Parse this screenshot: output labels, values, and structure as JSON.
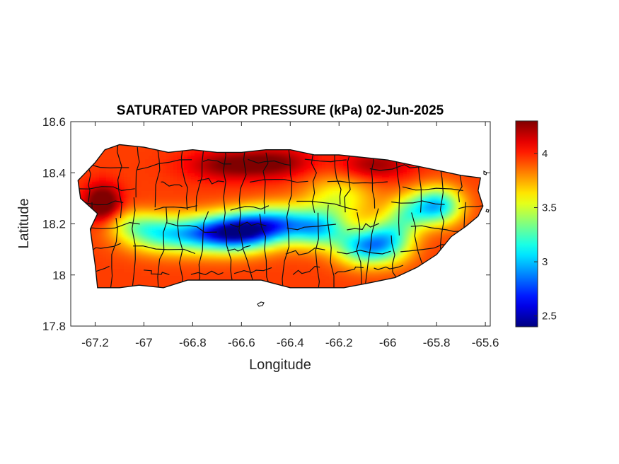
{
  "chart_data": {
    "type": "heatmap",
    "title": "SATURATED VAPOR PRESSURE (kPa) 02-Jun-2025",
    "xlabel": "Longitude",
    "ylabel": "Latitude",
    "xlim": [
      -67.3,
      -65.58
    ],
    "ylim": [
      17.8,
      18.6
    ],
    "xticks": [
      {
        "value": -67.2,
        "label": "-67.2"
      },
      {
        "value": -67.0,
        "label": "-67"
      },
      {
        "value": -66.8,
        "label": "-66.8"
      },
      {
        "value": -66.6,
        "label": "-66.6"
      },
      {
        "value": -66.4,
        "label": "-66.4"
      },
      {
        "value": -66.2,
        "label": "-66.2"
      },
      {
        "value": -66.0,
        "label": "-66"
      },
      {
        "value": -65.8,
        "label": "-65.8"
      },
      {
        "value": -65.6,
        "label": "-65.6"
      }
    ],
    "yticks": [
      {
        "value": 17.8,
        "label": "17.8"
      },
      {
        "value": 18.0,
        "label": "18"
      },
      {
        "value": 18.2,
        "label": "18.2"
      },
      {
        "value": 18.4,
        "label": "18.4"
      },
      {
        "value": 18.6,
        "label": "18.6"
      }
    ],
    "colorbar": {
      "colormap": "jet",
      "limits": [
        2.4,
        4.3
      ],
      "ticks": [
        {
          "value": 2.5,
          "label": "2.5"
        },
        {
          "value": 3.0,
          "label": "3"
        },
        {
          "value": 3.5,
          "label": "3.5"
        },
        {
          "value": 4.0,
          "label": "4"
        }
      ]
    },
    "region_outline_lonlat": [
      [
        -67.27,
        18.37
      ],
      [
        -67.24,
        18.4
      ],
      [
        -67.2,
        18.44
      ],
      [
        -67.16,
        18.49
      ],
      [
        -67.1,
        18.51
      ],
      [
        -67.0,
        18.5
      ],
      [
        -66.9,
        18.48
      ],
      [
        -66.8,
        18.49
      ],
      [
        -66.7,
        18.48
      ],
      [
        -66.6,
        18.48
      ],
      [
        -66.5,
        18.49
      ],
      [
        -66.4,
        18.49
      ],
      [
        -66.3,
        18.47
      ],
      [
        -66.2,
        18.47
      ],
      [
        -66.1,
        18.46
      ],
      [
        -66.0,
        18.45
      ],
      [
        -65.9,
        18.43
      ],
      [
        -65.8,
        18.41
      ],
      [
        -65.7,
        18.39
      ],
      [
        -65.62,
        18.38
      ],
      [
        -65.63,
        18.33
      ],
      [
        -65.61,
        18.27
      ],
      [
        -65.63,
        18.23
      ],
      [
        -65.68,
        18.19
      ],
      [
        -65.74,
        18.15
      ],
      [
        -65.8,
        18.08
      ],
      [
        -65.88,
        18.03
      ],
      [
        -65.97,
        17.99
      ],
      [
        -66.07,
        17.97
      ],
      [
        -66.18,
        17.95
      ],
      [
        -66.3,
        17.95
      ],
      [
        -66.4,
        17.95
      ],
      [
        -66.52,
        17.98
      ],
      [
        -66.62,
        17.98
      ],
      [
        -66.72,
        17.98
      ],
      [
        -66.82,
        17.98
      ],
      [
        -66.92,
        17.95
      ],
      [
        -67.02,
        17.96
      ],
      [
        -67.1,
        17.95
      ],
      [
        -67.19,
        17.95
      ],
      [
        -67.2,
        18.04
      ],
      [
        -67.21,
        18.11
      ],
      [
        -67.22,
        18.18
      ],
      [
        -67.19,
        18.24
      ],
      [
        -67.26,
        18.3
      ],
      [
        -67.27,
        18.37
      ]
    ],
    "field_anomalies": [
      {
        "lon": -67.17,
        "lat": 18.28,
        "amp": 0.55,
        "sx": 0.05,
        "sy": 0.05
      },
      {
        "lon": -66.65,
        "lat": 18.43,
        "amp": 0.35,
        "sx": 0.12,
        "sy": 0.04
      },
      {
        "lon": -66.45,
        "lat": 18.44,
        "amp": 0.3,
        "sx": 0.1,
        "sy": 0.04
      },
      {
        "lon": -66.05,
        "lat": 18.43,
        "amp": 0.3,
        "sx": 0.1,
        "sy": 0.04
      },
      {
        "lon": -66.6,
        "lat": 18.17,
        "amp": -1.1,
        "sx": 0.1,
        "sy": 0.05
      },
      {
        "lon": -66.75,
        "lat": 18.16,
        "amp": -0.85,
        "sx": 0.12,
        "sy": 0.05
      },
      {
        "lon": -66.45,
        "lat": 18.2,
        "amp": -0.85,
        "sx": 0.1,
        "sy": 0.05
      },
      {
        "lon": -66.95,
        "lat": 18.16,
        "amp": -0.55,
        "sx": 0.1,
        "sy": 0.05
      },
      {
        "lon": -66.28,
        "lat": 18.18,
        "amp": -0.75,
        "sx": 0.08,
        "sy": 0.05
      },
      {
        "lon": -66.1,
        "lat": 18.11,
        "amp": -0.85,
        "sx": 0.08,
        "sy": 0.05
      },
      {
        "lon": -65.99,
        "lat": 18.14,
        "amp": -0.65,
        "sx": 0.07,
        "sy": 0.06
      },
      {
        "lon": -65.8,
        "lat": 18.27,
        "amp": -0.95,
        "sx": 0.07,
        "sy": 0.05
      },
      {
        "lon": -65.92,
        "lat": 18.24,
        "amp": -0.45,
        "sx": 0.06,
        "sy": 0.05
      },
      {
        "lon": -66.2,
        "lat": 18.3,
        "amp": -0.4,
        "sx": 0.1,
        "sy": 0.06
      },
      {
        "lon": -67.05,
        "lat": 18.2,
        "amp": -0.3,
        "sx": 0.08,
        "sy": 0.04
      }
    ],
    "field_base_value": 3.95,
    "field_edge_value": 3.8
  }
}
